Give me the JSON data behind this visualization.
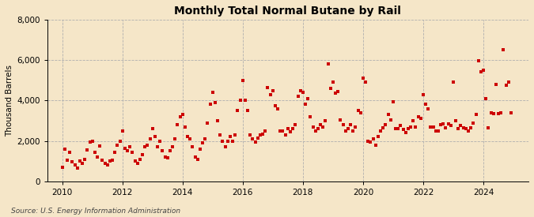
{
  "title": "Monthly Total Normal Butane by Rail",
  "ylabel": "Thousand Barrels",
  "source": "Source: U.S. Energy Information Administration",
  "background_color": "#f5e6c8",
  "plot_background_color": "#f5e6c8",
  "marker_color": "#cc0000",
  "marker_size": 10,
  "ylim": [
    0,
    8000
  ],
  "yticks": [
    0,
    2000,
    4000,
    6000,
    8000
  ],
  "xlim_start": 2009.5,
  "xlim_end": 2025.5,
  "xtick_years": [
    2010,
    2012,
    2014,
    2016,
    2018,
    2020,
    2022,
    2024
  ],
  "data": [
    [
      2010.0,
      700
    ],
    [
      2010.083,
      1600
    ],
    [
      2010.167,
      1050
    ],
    [
      2010.25,
      1450
    ],
    [
      2010.333,
      950
    ],
    [
      2010.417,
      800
    ],
    [
      2010.5,
      650
    ],
    [
      2010.583,
      1000
    ],
    [
      2010.667,
      900
    ],
    [
      2010.75,
      1100
    ],
    [
      2010.833,
      1550
    ],
    [
      2010.917,
      1950
    ],
    [
      2011.0,
      2000
    ],
    [
      2011.083,
      1450
    ],
    [
      2011.167,
      1200
    ],
    [
      2011.25,
      1750
    ],
    [
      2011.333,
      1050
    ],
    [
      2011.417,
      900
    ],
    [
      2011.5,
      800
    ],
    [
      2011.583,
      1000
    ],
    [
      2011.667,
      1050
    ],
    [
      2011.75,
      1450
    ],
    [
      2011.833,
      1800
    ],
    [
      2011.917,
      2000
    ],
    [
      2012.0,
      2500
    ],
    [
      2012.083,
      1650
    ],
    [
      2012.167,
      1500
    ],
    [
      2012.25,
      1700
    ],
    [
      2012.333,
      1450
    ],
    [
      2012.417,
      1000
    ],
    [
      2012.5,
      900
    ],
    [
      2012.583,
      1100
    ],
    [
      2012.667,
      1300
    ],
    [
      2012.75,
      1700
    ],
    [
      2012.833,
      1800
    ],
    [
      2012.917,
      2100
    ],
    [
      2013.0,
      2600
    ],
    [
      2013.083,
      2200
    ],
    [
      2013.167,
      1700
    ],
    [
      2013.25,
      2000
    ],
    [
      2013.333,
      1500
    ],
    [
      2013.417,
      1200
    ],
    [
      2013.5,
      1150
    ],
    [
      2013.583,
      1500
    ],
    [
      2013.667,
      1700
    ],
    [
      2013.75,
      2100
    ],
    [
      2013.833,
      2800
    ],
    [
      2013.917,
      3200
    ],
    [
      2014.0,
      3300
    ],
    [
      2014.083,
      2700
    ],
    [
      2014.167,
      2200
    ],
    [
      2014.25,
      2100
    ],
    [
      2014.333,
      1700
    ],
    [
      2014.417,
      1200
    ],
    [
      2014.5,
      1100
    ],
    [
      2014.583,
      1600
    ],
    [
      2014.667,
      1900
    ],
    [
      2014.75,
      2100
    ],
    [
      2014.833,
      2900
    ],
    [
      2014.917,
      3800
    ],
    [
      2015.0,
      4400
    ],
    [
      2015.083,
      3900
    ],
    [
      2015.167,
      3000
    ],
    [
      2015.25,
      2300
    ],
    [
      2015.333,
      2000
    ],
    [
      2015.417,
      1700
    ],
    [
      2015.5,
      2000
    ],
    [
      2015.583,
      2200
    ],
    [
      2015.667,
      2000
    ],
    [
      2015.75,
      2300
    ],
    [
      2015.833,
      3500
    ],
    [
      2015.917,
      4000
    ],
    [
      2016.0,
      5000
    ],
    [
      2016.083,
      4000
    ],
    [
      2016.167,
      3500
    ],
    [
      2016.25,
      2300
    ],
    [
      2016.333,
      2100
    ],
    [
      2016.417,
      1950
    ],
    [
      2016.5,
      2150
    ],
    [
      2016.583,
      2300
    ],
    [
      2016.667,
      2350
    ],
    [
      2016.75,
      2500
    ],
    [
      2016.833,
      4650
    ],
    [
      2016.917,
      4300
    ],
    [
      2017.0,
      4500
    ],
    [
      2017.083,
      3750
    ],
    [
      2017.167,
      3600
    ],
    [
      2017.25,
      2500
    ],
    [
      2017.333,
      2500
    ],
    [
      2017.417,
      2300
    ],
    [
      2017.5,
      2600
    ],
    [
      2017.583,
      2450
    ],
    [
      2017.667,
      2600
    ],
    [
      2017.75,
      2800
    ],
    [
      2017.833,
      4200
    ],
    [
      2017.917,
      4500
    ],
    [
      2018.0,
      4400
    ],
    [
      2018.083,
      3800
    ],
    [
      2018.167,
      4100
    ],
    [
      2018.25,
      3200
    ],
    [
      2018.333,
      2700
    ],
    [
      2018.417,
      2500
    ],
    [
      2018.5,
      2600
    ],
    [
      2018.583,
      2800
    ],
    [
      2018.667,
      2700
    ],
    [
      2018.75,
      3000
    ],
    [
      2018.833,
      5800
    ],
    [
      2018.917,
      4600
    ],
    [
      2019.0,
      4900
    ],
    [
      2019.083,
      4350
    ],
    [
      2019.167,
      4450
    ],
    [
      2019.25,
      3050
    ],
    [
      2019.333,
      2800
    ],
    [
      2019.417,
      2500
    ],
    [
      2019.5,
      2600
    ],
    [
      2019.583,
      2800
    ],
    [
      2019.667,
      2500
    ],
    [
      2019.75,
      2700
    ],
    [
      2019.833,
      3500
    ],
    [
      2019.917,
      3400
    ],
    [
      2020.0,
      5100
    ],
    [
      2020.083,
      4900
    ],
    [
      2020.167,
      2000
    ],
    [
      2020.25,
      1950
    ],
    [
      2020.333,
      2100
    ],
    [
      2020.417,
      1800
    ],
    [
      2020.5,
      2200
    ],
    [
      2020.583,
      2500
    ],
    [
      2020.667,
      2650
    ],
    [
      2020.75,
      2800
    ],
    [
      2020.833,
      3300
    ],
    [
      2020.917,
      3050
    ],
    [
      2021.0,
      3950
    ],
    [
      2021.083,
      2600
    ],
    [
      2021.167,
      2600
    ],
    [
      2021.25,
      2750
    ],
    [
      2021.333,
      2550
    ],
    [
      2021.417,
      2400
    ],
    [
      2021.5,
      2600
    ],
    [
      2021.583,
      2700
    ],
    [
      2021.667,
      3000
    ],
    [
      2021.75,
      2700
    ],
    [
      2021.833,
      3200
    ],
    [
      2021.917,
      3100
    ],
    [
      2022.0,
      4300
    ],
    [
      2022.083,
      3800
    ],
    [
      2022.167,
      3600
    ],
    [
      2022.25,
      2700
    ],
    [
      2022.333,
      2700
    ],
    [
      2022.417,
      2500
    ],
    [
      2022.5,
      2500
    ],
    [
      2022.583,
      2800
    ],
    [
      2022.667,
      2850
    ],
    [
      2022.75,
      2650
    ],
    [
      2022.833,
      2850
    ],
    [
      2022.917,
      2750
    ],
    [
      2023.0,
      4900
    ],
    [
      2023.083,
      3000
    ],
    [
      2023.167,
      2600
    ],
    [
      2023.25,
      2750
    ],
    [
      2023.333,
      2650
    ],
    [
      2023.417,
      2600
    ],
    [
      2023.5,
      2500
    ],
    [
      2023.583,
      2650
    ],
    [
      2023.667,
      2900
    ],
    [
      2023.75,
      3300
    ],
    [
      2023.833,
      5950
    ],
    [
      2023.917,
      5400
    ],
    [
      2024.0,
      5500
    ],
    [
      2024.083,
      4100
    ],
    [
      2024.167,
      2650
    ],
    [
      2024.25,
      3400
    ],
    [
      2024.333,
      3350
    ],
    [
      2024.417,
      4800
    ],
    [
      2024.5,
      3350
    ],
    [
      2024.583,
      3400
    ],
    [
      2024.667,
      6500
    ],
    [
      2024.75,
      4750
    ],
    [
      2024.833,
      4900
    ],
    [
      2024.917,
      3400
    ]
  ]
}
